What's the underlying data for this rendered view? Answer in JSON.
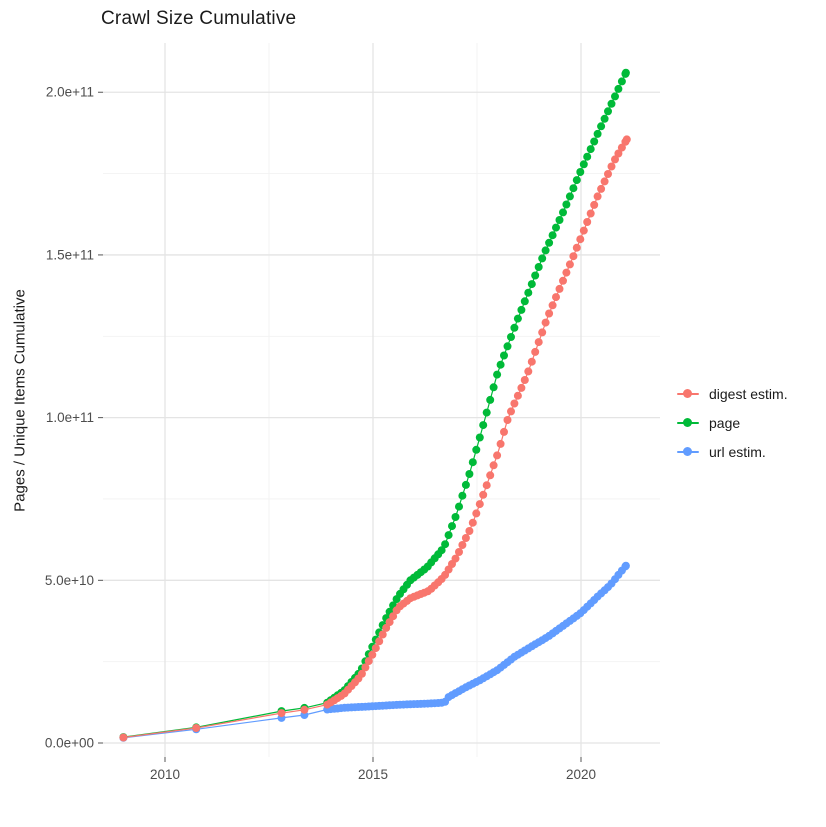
{
  "chart_data": {
    "type": "line",
    "title": "Crawl Size Cumulative",
    "ylabel": "Pages / Unique Items Cumulative",
    "xlabel": "",
    "value_units": "absolute counts; keypoint values stored in billions (1e9)",
    "legend_position": "right",
    "grid": "major and minor, light gray on white",
    "x_range": [
      2008.5,
      2021.9
    ],
    "y_range_e9": [
      -4,
      215
    ],
    "x_ticks": [
      {
        "value": 2010,
        "label": "2010"
      },
      {
        "value": 2015,
        "label": "2015"
      },
      {
        "value": 2020,
        "label": "2020"
      }
    ],
    "x_minor_ticks": [
      2012.5,
      2017.5
    ],
    "y_ticks": [
      {
        "value_e9": 0,
        "label": "0.0e+00"
      },
      {
        "value_e9": 50,
        "label": "5.0e+10"
      },
      {
        "value_e9": 100,
        "label": "1.0e+11"
      },
      {
        "value_e9": 150,
        "label": "1.5e+11"
      },
      {
        "value_e9": 200,
        "label": "2.0e+11"
      }
    ],
    "y_minor_ticks_e9": [
      25,
      75,
      125,
      175
    ],
    "point_style": "filled dots connected by thin lines, plotted per crawl (~monthly after late 2013)",
    "sparse_until_year": 2013.9,
    "monthly_step_years": 0.0833333,
    "draw_order": [
      1,
      2,
      0
    ],
    "series": [
      {
        "name": "digest estim.",
        "color": "#F8766D",
        "keypoints_year_value_e9": [
          [
            2009.0,
            1.7
          ],
          [
            2010.75,
            4.6
          ],
          [
            2012.8,
            9.2
          ],
          [
            2013.35,
            10.2
          ],
          [
            2013.9,
            11.8
          ],
          [
            2014.3,
            15
          ],
          [
            2014.7,
            20.5
          ],
          [
            2015.0,
            27.5
          ],
          [
            2015.3,
            35
          ],
          [
            2015.6,
            41.5
          ],
          [
            2015.9,
            44.5
          ],
          [
            2016.35,
            46.8
          ],
          [
            2016.7,
            51
          ],
          [
            2017.0,
            57
          ],
          [
            2017.35,
            66
          ],
          [
            2017.7,
            78
          ],
          [
            2018.0,
            89
          ],
          [
            2018.25,
            100
          ],
          [
            2018.7,
            113
          ],
          [
            2019.2,
            131
          ],
          [
            2019.83,
            150
          ],
          [
            2020.4,
            168
          ],
          [
            2020.8,
            179
          ],
          [
            2021.1,
            185.5
          ]
        ]
      },
      {
        "name": "page",
        "color": "#00BA38",
        "keypoints_year_value_e9": [
          [
            2009.0,
            1.8
          ],
          [
            2010.75,
            4.8
          ],
          [
            2012.8,
            9.8
          ],
          [
            2013.35,
            10.8
          ],
          [
            2013.9,
            12.4
          ],
          [
            2014.3,
            16
          ],
          [
            2014.7,
            22
          ],
          [
            2015.0,
            30
          ],
          [
            2015.3,
            38
          ],
          [
            2015.6,
            45
          ],
          [
            2015.9,
            50
          ],
          [
            2016.3,
            54
          ],
          [
            2016.7,
            60
          ],
          [
            2017.0,
            70
          ],
          [
            2017.35,
            84
          ],
          [
            2017.7,
            100
          ],
          [
            2018.0,
            114
          ],
          [
            2018.5,
            131
          ],
          [
            2019.1,
            150
          ],
          [
            2019.6,
            164
          ],
          [
            2020.0,
            176
          ],
          [
            2020.5,
            190
          ],
          [
            2021.08,
            206
          ]
        ]
      },
      {
        "name": "url estim.",
        "color": "#619CFF",
        "keypoints_year_value_e9": [
          [
            2009.0,
            1.6
          ],
          [
            2010.75,
            4.2
          ],
          [
            2012.8,
            7.7
          ],
          [
            2013.35,
            8.6
          ],
          [
            2013.9,
            10.3
          ],
          [
            2014.3,
            10.8
          ],
          [
            2015.0,
            11.3
          ],
          [
            2015.7,
            11.8
          ],
          [
            2016.3,
            12.1
          ],
          [
            2016.72,
            12.4
          ],
          [
            2016.8,
            14.0
          ],
          [
            2017.2,
            16.9
          ],
          [
            2017.6,
            19.5
          ],
          [
            2018.0,
            22.5
          ],
          [
            2018.4,
            26.5
          ],
          [
            2018.8,
            29.6
          ],
          [
            2019.2,
            32.6
          ],
          [
            2019.6,
            36.3
          ],
          [
            2020.0,
            40.0
          ],
          [
            2020.4,
            45
          ],
          [
            2020.7,
            48.5
          ],
          [
            2021.08,
            54.5
          ]
        ]
      }
    ]
  }
}
